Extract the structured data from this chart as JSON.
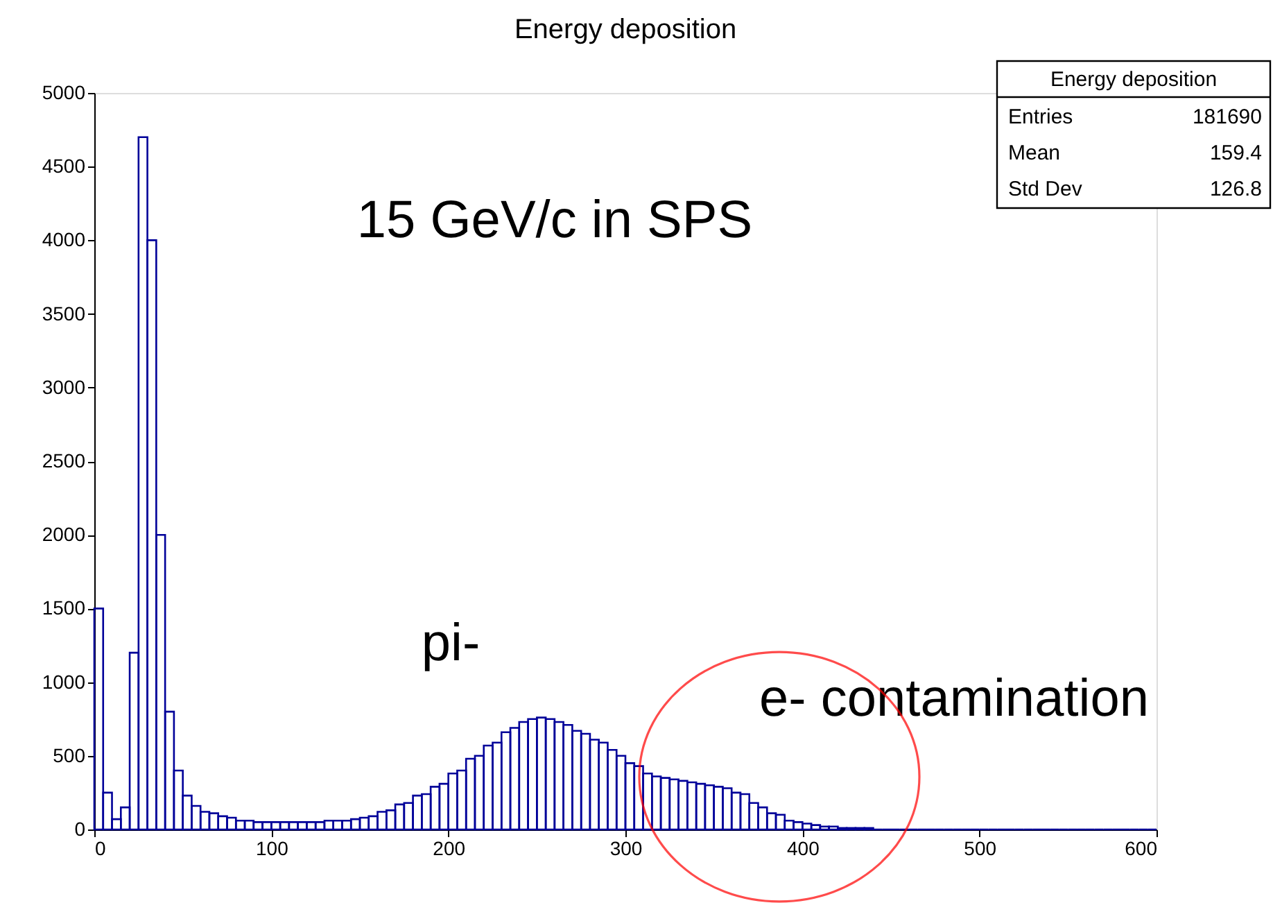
{
  "chart_data": {
    "type": "histogram",
    "title": "Energy deposition",
    "bins": [
      0,
      5,
      10,
      15,
      20,
      25,
      30,
      35,
      40,
      45,
      50,
      55,
      60,
      65,
      70,
      75,
      80,
      85,
      90,
      95,
      100,
      105,
      110,
      115,
      120,
      125,
      130,
      135,
      140,
      145,
      150,
      155,
      160,
      165,
      170,
      175,
      180,
      185,
      190,
      195,
      200,
      205,
      210,
      215,
      220,
      225,
      230,
      235,
      240,
      245,
      250,
      255,
      260,
      265,
      270,
      275,
      280,
      285,
      290,
      295,
      300,
      305,
      310,
      315,
      320,
      325,
      330,
      335,
      340,
      345,
      350,
      355,
      360,
      365,
      370,
      375,
      380,
      385,
      390,
      395,
      400,
      405,
      410,
      415,
      420,
      425,
      430,
      435,
      440,
      445,
      450,
      455,
      460,
      465,
      470,
      475,
      480,
      485,
      490,
      495,
      500,
      505,
      510,
      515,
      520,
      525,
      530,
      535,
      540,
      545,
      550,
      555,
      560,
      565,
      570,
      575,
      580,
      585,
      590,
      595,
      600
    ],
    "values": [
      1500,
      250,
      70,
      150,
      1200,
      4700,
      4000,
      2000,
      800,
      400,
      230,
      160,
      120,
      110,
      90,
      80,
      60,
      60,
      50,
      50,
      50,
      50,
      50,
      50,
      50,
      50,
      60,
      60,
      60,
      70,
      80,
      90,
      120,
      130,
      170,
      180,
      230,
      240,
      290,
      310,
      380,
      400,
      480,
      500,
      570,
      590,
      660,
      690,
      730,
      750,
      760,
      750,
      730,
      710,
      670,
      650,
      610,
      590,
      540,
      500,
      450,
      430,
      380,
      360,
      350,
      340,
      330,
      320,
      310,
      300,
      290,
      280,
      250,
      240,
      180,
      150,
      110,
      100,
      60,
      50,
      40,
      30,
      20,
      20,
      10,
      10,
      10,
      10,
      0,
      0,
      0,
      0,
      0,
      0,
      0,
      0,
      0,
      0,
      0,
      0,
      0,
      0,
      0,
      0,
      0,
      0,
      0,
      0,
      0,
      0,
      0,
      0,
      0,
      0,
      0,
      0,
      0,
      0,
      0,
      0
    ],
    "color": "#000099",
    "xlim": [
      0,
      600
    ],
    "xticks": [
      0,
      100,
      200,
      300,
      400,
      500,
      600
    ],
    "ylim": [
      0,
      5000
    ],
    "yticks": [
      0,
      500,
      1000,
      1500,
      2000,
      2500,
      3000,
      3500,
      4000,
      4500,
      5000
    ],
    "grid": false,
    "annotations": [
      "15 GeV/c in SPS",
      "pi-",
      "e- contamination",
      "Energy deposition",
      "Entries 181690",
      "Mean 159.4",
      "Std Dev 126.8"
    ]
  }
}
